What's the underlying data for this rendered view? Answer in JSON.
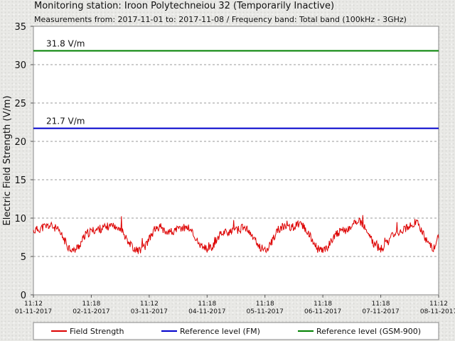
{
  "header": {
    "title": "Monitoring station: Iroon Polytechneiou 32 (Temporarily Inactive)",
    "subtitle": "Measurements from: 2017-11-01 to: 2017-11-08 / Frequency band: Total band (100kHz - 3GHz)"
  },
  "chart_data": {
    "type": "line",
    "ylabel": "Electric Field Strength (V/m)",
    "ylim": [
      0,
      35
    ],
    "yticks": [
      0,
      5,
      10,
      15,
      20,
      25,
      30,
      35
    ],
    "grid": "horizontal dashed",
    "x_ticks": [
      {
        "time": "11:12",
        "date": "01-11-2017"
      },
      {
        "time": "11:18",
        "date": "02-11-2017"
      },
      {
        "time": "11:12",
        "date": "03-11-2017"
      },
      {
        "time": "11:18",
        "date": "04-11-2017"
      },
      {
        "time": "11:18",
        "date": "05-11-2017"
      },
      {
        "time": "11:18",
        "date": "06-11-2017"
      },
      {
        "time": "11:18",
        "date": "07-11-2017"
      },
      {
        "time": "11:12",
        "date": "08-11-2017"
      }
    ],
    "reference_lines": [
      {
        "name": "Reference level (GSM-900)",
        "value": 31.8,
        "label": "31.8 V/m",
        "color": "#008000"
      },
      {
        "name": "Reference level (FM)",
        "value": 21.7,
        "label": "21.7 V/m",
        "color": "#0000cc"
      }
    ],
    "series": [
      {
        "name": "Field Strength",
        "color": "#dd0000",
        "x_days": [
          0,
          0.1,
          0.2,
          0.3,
          0.4,
          0.5,
          0.6,
          0.7,
          0.8,
          0.9,
          1.0,
          1.1,
          1.2,
          1.3,
          1.4,
          1.5,
          1.6,
          1.7,
          1.8,
          1.9,
          2.0,
          2.1,
          2.2,
          2.3,
          2.4,
          2.5,
          2.6,
          2.7,
          2.8,
          2.9,
          3.0,
          3.1,
          3.2,
          3.3,
          3.4,
          3.5,
          3.6,
          3.7,
          3.8,
          3.9,
          4.0,
          4.1,
          4.2,
          4.3,
          4.4,
          4.5,
          4.6,
          4.7,
          4.8,
          4.9,
          5.0,
          5.1,
          5.2,
          5.3,
          5.4,
          5.5,
          5.6,
          5.7,
          5.8,
          5.9,
          6.0,
          6.1,
          6.2,
          6.3,
          6.4,
          6.5,
          6.6,
          6.7,
          6.8,
          6.9,
          7.0
        ],
        "values": [
          8.3,
          8.6,
          8.9,
          9.0,
          8.6,
          7.6,
          6.3,
          5.7,
          6.5,
          7.8,
          8.3,
          8.5,
          8.7,
          8.9,
          9.1,
          8.7,
          7.5,
          6.3,
          5.8,
          6.0,
          7.2,
          8.6,
          8.8,
          8.3,
          8.2,
          8.5,
          8.8,
          8.7,
          7.4,
          6.2,
          5.9,
          6.3,
          7.7,
          8.3,
          8.1,
          8.4,
          8.7,
          8.5,
          7.3,
          6.3,
          5.9,
          6.6,
          8.2,
          8.8,
          8.7,
          8.9,
          9.2,
          8.7,
          7.3,
          6.0,
          5.7,
          6.4,
          7.8,
          8.2,
          8.4,
          8.9,
          9.8,
          8.9,
          7.6,
          6.5,
          5.9,
          6.6,
          7.8,
          8.2,
          8.6,
          8.9,
          9.6,
          8.5,
          7.0,
          5.9,
          7.8
        ]
      }
    ],
    "legend": {
      "placement": "bottom",
      "items": [
        {
          "label": "Field Strength",
          "color": "#dd0000"
        },
        {
          "label": "Reference level (FM)",
          "color": "#0000cc"
        },
        {
          "label": "Reference level (GSM-900)",
          "color": "#008000"
        }
      ]
    }
  }
}
